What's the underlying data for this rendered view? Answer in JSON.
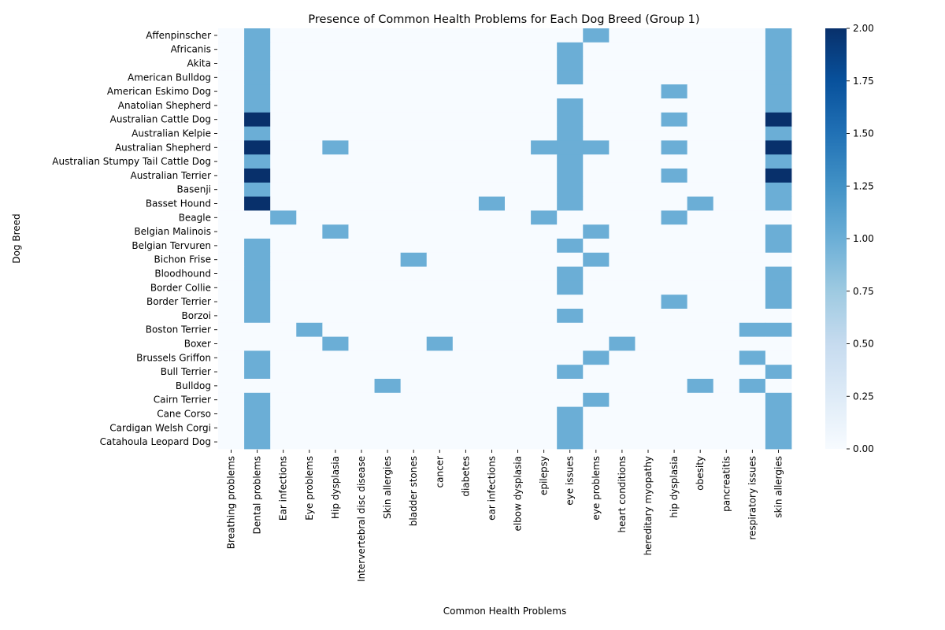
{
  "chart_data": {
    "type": "heatmap",
    "title": "Presence of Common Health Problems for Each Dog Breed (Group 1)",
    "xlabel": "Common Health Problems",
    "ylabel": "Dog Breed",
    "colormap": "Blues",
    "vmin": 0,
    "vmax": 2,
    "colorbar_ticks": [
      "0.00",
      "0.25",
      "0.50",
      "0.75",
      "1.00",
      "1.25",
      "1.50",
      "1.75",
      "2.00"
    ],
    "x": [
      "Breathing problems",
      "Dental problems",
      "Ear infections",
      "Eye problems",
      "Hip dysplasia",
      "Intervertebral disc disease",
      "Skin allergies",
      "bladder stones",
      "cancer",
      "diabetes",
      "ear infections",
      "elbow dysplasia",
      "epilepsy",
      "eye issues",
      "eye problems",
      "heart conditions",
      "hereditary myopathy",
      "hip dysplasia",
      "obesity",
      "pancreatitis",
      "respiratory issues",
      "skin allergies"
    ],
    "y": [
      "Affenpinscher",
      "Africanis",
      "Akita",
      "American Bulldog",
      "American Eskimo Dog",
      "Anatolian Shepherd",
      "Australian Cattle Dog",
      "Australian Kelpie",
      "Australian Shepherd",
      "Australian Stumpy Tail Cattle Dog",
      "Australian Terrier",
      "Basenji",
      "Basset Hound",
      "Beagle",
      "Belgian Malinois",
      "Belgian Tervuren",
      "Bichon Frise",
      "Bloodhound",
      "Border Collie",
      "Border Terrier",
      "Borzoi",
      "Boston Terrier",
      "Boxer",
      "Brussels Griffon",
      "Bull Terrier",
      "Bulldog",
      "Cairn Terrier",
      "Cane Corso",
      "Cardigan Welsh Corgi",
      "Catahoula Leopard Dog"
    ],
    "z": [
      [
        0,
        1,
        0,
        0,
        0,
        0,
        0,
        0,
        0,
        0,
        0,
        0,
        0,
        0,
        1,
        0,
        0,
        0,
        0,
        0,
        0,
        1
      ],
      [
        0,
        1,
        0,
        0,
        0,
        0,
        0,
        0,
        0,
        0,
        0,
        0,
        0,
        1,
        0,
        0,
        0,
        0,
        0,
        0,
        0,
        1
      ],
      [
        0,
        1,
        0,
        0,
        0,
        0,
        0,
        0,
        0,
        0,
        0,
        0,
        0,
        1,
        0,
        0,
        0,
        0,
        0,
        0,
        0,
        1
      ],
      [
        0,
        1,
        0,
        0,
        0,
        0,
        0,
        0,
        0,
        0,
        0,
        0,
        0,
        1,
        0,
        0,
        0,
        0,
        0,
        0,
        0,
        1
      ],
      [
        0,
        1,
        0,
        0,
        0,
        0,
        0,
        0,
        0,
        0,
        0,
        0,
        0,
        0,
        0,
        0,
        0,
        1,
        0,
        0,
        0,
        1
      ],
      [
        0,
        1,
        0,
        0,
        0,
        0,
        0,
        0,
        0,
        0,
        0,
        0,
        0,
        1,
        0,
        0,
        0,
        0,
        0,
        0,
        0,
        1
      ],
      [
        0,
        2,
        0,
        0,
        0,
        0,
        0,
        0,
        0,
        0,
        0,
        0,
        0,
        1,
        0,
        0,
        0,
        1,
        0,
        0,
        0,
        2
      ],
      [
        0,
        1,
        0,
        0,
        0,
        0,
        0,
        0,
        0,
        0,
        0,
        0,
        0,
        1,
        0,
        0,
        0,
        0,
        0,
        0,
        0,
        1
      ],
      [
        0,
        2,
        0,
        0,
        1,
        0,
        0,
        0,
        0,
        0,
        0,
        0,
        1,
        1,
        1,
        0,
        0,
        1,
        0,
        0,
        0,
        2
      ],
      [
        0,
        1,
        0,
        0,
        0,
        0,
        0,
        0,
        0,
        0,
        0,
        0,
        0,
        1,
        0,
        0,
        0,
        0,
        0,
        0,
        0,
        1
      ],
      [
        0,
        2,
        0,
        0,
        0,
        0,
        0,
        0,
        0,
        0,
        0,
        0,
        0,
        1,
        0,
        0,
        0,
        1,
        0,
        0,
        0,
        2
      ],
      [
        0,
        1,
        0,
        0,
        0,
        0,
        0,
        0,
        0,
        0,
        0,
        0,
        0,
        1,
        0,
        0,
        0,
        0,
        0,
        0,
        0,
        1
      ],
      [
        0,
        2,
        0,
        0,
        0,
        0,
        0,
        0,
        0,
        0,
        1,
        0,
        0,
        1,
        0,
        0,
        0,
        0,
        1,
        0,
        0,
        1
      ],
      [
        0,
        0,
        1,
        0,
        0,
        0,
        0,
        0,
        0,
        0,
        0,
        0,
        1,
        0,
        0,
        0,
        0,
        1,
        0,
        0,
        0,
        0
      ],
      [
        0,
        0,
        0,
        0,
        1,
        0,
        0,
        0,
        0,
        0,
        0,
        0,
        0,
        0,
        1,
        0,
        0,
        0,
        0,
        0,
        0,
        1
      ],
      [
        0,
        1,
        0,
        0,
        0,
        0,
        0,
        0,
        0,
        0,
        0,
        0,
        0,
        1,
        0,
        0,
        0,
        0,
        0,
        0,
        0,
        1
      ],
      [
        0,
        1,
        0,
        0,
        0,
        0,
        0,
        1,
        0,
        0,
        0,
        0,
        0,
        0,
        1,
        0,
        0,
        0,
        0,
        0,
        0,
        0
      ],
      [
        0,
        1,
        0,
        0,
        0,
        0,
        0,
        0,
        0,
        0,
        0,
        0,
        0,
        1,
        0,
        0,
        0,
        0,
        0,
        0,
        0,
        1
      ],
      [
        0,
        1,
        0,
        0,
        0,
        0,
        0,
        0,
        0,
        0,
        0,
        0,
        0,
        1,
        0,
        0,
        0,
        0,
        0,
        0,
        0,
        1
      ],
      [
        0,
        1,
        0,
        0,
        0,
        0,
        0,
        0,
        0,
        0,
        0,
        0,
        0,
        0,
        0,
        0,
        0,
        1,
        0,
        0,
        0,
        1
      ],
      [
        0,
        1,
        0,
        0,
        0,
        0,
        0,
        0,
        0,
        0,
        0,
        0,
        0,
        1,
        0,
        0,
        0,
        0,
        0,
        0,
        0,
        0
      ],
      [
        0,
        0,
        0,
        1,
        0,
        0,
        0,
        0,
        0,
        0,
        0,
        0,
        0,
        0,
        0,
        0,
        0,
        0,
        0,
        0,
        1,
        1
      ],
      [
        0,
        0,
        0,
        0,
        1,
        0,
        0,
        0,
        1,
        0,
        0,
        0,
        0,
        0,
        0,
        1,
        0,
        0,
        0,
        0,
        0,
        0
      ],
      [
        0,
        1,
        0,
        0,
        0,
        0,
        0,
        0,
        0,
        0,
        0,
        0,
        0,
        0,
        1,
        0,
        0,
        0,
        0,
        0,
        1,
        0
      ],
      [
        0,
        1,
        0,
        0,
        0,
        0,
        0,
        0,
        0,
        0,
        0,
        0,
        0,
        1,
        0,
        0,
        0,
        0,
        0,
        0,
        0,
        1
      ],
      [
        0,
        0,
        0,
        0,
        0,
        0,
        1,
        0,
        0,
        0,
        0,
        0,
        0,
        0,
        0,
        0,
        0,
        0,
        1,
        0,
        1,
        0
      ],
      [
        0,
        1,
        0,
        0,
        0,
        0,
        0,
        0,
        0,
        0,
        0,
        0,
        0,
        0,
        1,
        0,
        0,
        0,
        0,
        0,
        0,
        1
      ],
      [
        0,
        1,
        0,
        0,
        0,
        0,
        0,
        0,
        0,
        0,
        0,
        0,
        0,
        1,
        0,
        0,
        0,
        0,
        0,
        0,
        0,
        1
      ],
      [
        0,
        1,
        0,
        0,
        0,
        0,
        0,
        0,
        0,
        0,
        0,
        0,
        0,
        1,
        0,
        0,
        0,
        0,
        0,
        0,
        0,
        1
      ],
      [
        0,
        1,
        0,
        0,
        0,
        0,
        0,
        0,
        0,
        0,
        0,
        0,
        0,
        1,
        0,
        0,
        0,
        0,
        0,
        0,
        0,
        1
      ]
    ]
  }
}
